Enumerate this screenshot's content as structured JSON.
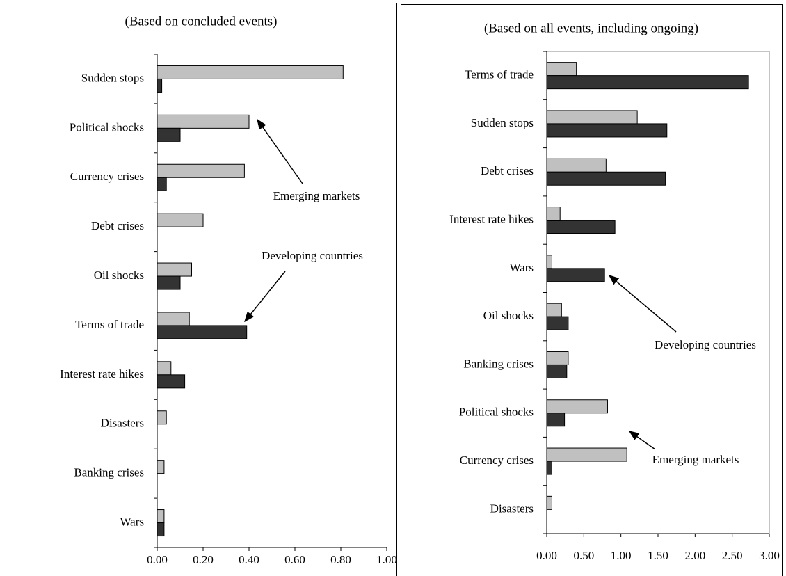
{
  "chart_data": [
    {
      "type": "bar",
      "orientation": "horizontal",
      "title": "(Based on concluded events)",
      "categories": [
        "Sudden stops",
        "Political shocks",
        "Currency crises",
        "Debt crises",
        "Oil shocks",
        "Terms of trade",
        "Interest rate hikes",
        "Disasters",
        "Banking crises",
        "Wars"
      ],
      "series": [
        {
          "name": "Emerging markets",
          "color": "#c0c0c0",
          "values": [
            0.81,
            0.4,
            0.38,
            0.2,
            0.15,
            0.14,
            0.06,
            0.04,
            0.03,
            0.03
          ]
        },
        {
          "name": "Developing countries",
          "color": "#333333",
          "values": [
            0.02,
            0.1,
            0.04,
            0,
            0.1,
            0.39,
            0.12,
            0,
            0,
            0.03
          ]
        }
      ],
      "xlim": [
        0,
        1
      ],
      "xticks": [
        {
          "value": 0,
          "label": "0.00"
        },
        {
          "value": 0.2,
          "label": "0.20"
        },
        {
          "value": 0.4,
          "label": "0.40"
        },
        {
          "value": 0.6,
          "label": "0.60"
        },
        {
          "value": 0.8,
          "label": "0.80"
        },
        {
          "value": 1,
          "label": "1.00"
        }
      ]
    },
    {
      "type": "bar",
      "orientation": "horizontal",
      "title": "(Based on all events, including ongoing)",
      "categories": [
        "Terms of trade",
        "Sudden stops",
        "Debt crises",
        "Interest rate hikes",
        "Wars",
        "Oil shocks",
        "Banking crises",
        "Political shocks",
        "Currency crises",
        "Disasters"
      ],
      "series": [
        {
          "name": "Emerging markets",
          "color": "#c0c0c0",
          "values": [
            0.4,
            1.22,
            0.8,
            0.18,
            0.07,
            0.2,
            0.29,
            0.82,
            1.08,
            0.07
          ]
        },
        {
          "name": "Developing countries",
          "color": "#333333",
          "values": [
            2.72,
            1.62,
            1.6,
            0.92,
            0.78,
            0.29,
            0.27,
            0.24,
            0.07,
            0
          ]
        }
      ],
      "xlim": [
        0,
        3
      ],
      "xticks": [
        {
          "value": 0,
          "label": "0.00"
        },
        {
          "value": 0.5,
          "label": "0.50"
        },
        {
          "value": 1,
          "label": "1.00"
        },
        {
          "value": 1.5,
          "label": "1.50"
        },
        {
          "value": 2,
          "label": "2.00"
        },
        {
          "value": 2.5,
          "label": "2.50"
        },
        {
          "value": 3,
          "label": "3.00"
        }
      ]
    }
  ]
}
